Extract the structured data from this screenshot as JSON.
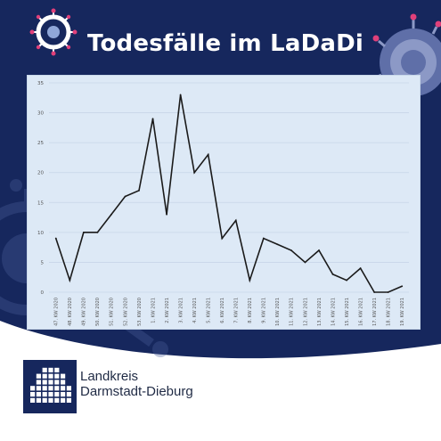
{
  "header": {
    "title": "Todesfälle im LaDaDi"
  },
  "organization": {
    "line1": "Landkreis",
    "line2": "Darmstadt-Dieburg"
  },
  "colors": {
    "navy": "#16275d",
    "chart_bg": "#dde9f6",
    "line": "#1a1a1a",
    "grid": "#c7d6e8"
  },
  "icons": {
    "top_left": "virus-icon",
    "top_right": "virus-icon",
    "background_left": "virus-icon",
    "logo": "grid-logo-icon"
  },
  "chart_data": {
    "type": "line",
    "title": "",
    "xlabel": "",
    "ylabel": "",
    "ylim": [
      0,
      35
    ],
    "yticks": [
      0,
      5,
      10,
      15,
      20,
      25,
      30,
      35
    ],
    "grid": true,
    "categories": [
      "47. KW 2020",
      "48. KW 2020",
      "49. KW 2020",
      "50. KW 2020",
      "51. KW 2020",
      "52. KW 2020",
      "53. KW 2020",
      "1. KW 2021",
      "2. KW 2021",
      "3. KW 2021",
      "4. KW 2021",
      "5. KW 2021",
      "6. KW 2021",
      "7. KW 2021",
      "8. KW 2021",
      "9. KW 2021",
      "10. KW 2021",
      "11. KW 2021",
      "12. KW 2021",
      "13. KW 2021",
      "14. KW 2021",
      "15. KW 2021",
      "16. KW 2021",
      "17. KW 2021",
      "18. KW 2021",
      "19. KW 2021"
    ],
    "x": [
      "47. KW 2020",
      "",
      "48. KW 2020",
      "",
      "49. KW 2020",
      "",
      "50. KW 2020",
      "",
      "51. KW 2020",
      "",
      "52. KW 2020",
      "",
      "53. KW 2020",
      "",
      "1. KW 2021",
      "",
      "2. KW 2021",
      "",
      "3. KW 2021",
      "",
      "4. KW 2021",
      "",
      "5. KW 2021",
      "",
      "6. KW 2021",
      "",
      "7. KW 2021",
      "",
      "8. KW 2021",
      "",
      "9. KW 2021",
      "",
      "10. KW 2021",
      "",
      "11. KW 2021",
      "",
      "12. KW 2021",
      "",
      "13. KW 2021",
      "",
      "14. KW 2021",
      "",
      "15. KW 2021",
      "",
      "16. KW 2021",
      "",
      "17. KW 2021",
      "",
      "18. KW 2021",
      "",
      "19. KW 2021",
      ""
    ],
    "values": [
      9,
      2,
      10,
      10,
      13,
      16,
      17,
      29,
      13,
      33,
      20,
      23,
      9,
      12,
      2,
      9,
      8,
      7,
      5,
      7,
      3,
      2,
      4,
      0,
      0,
      1
    ]
  }
}
